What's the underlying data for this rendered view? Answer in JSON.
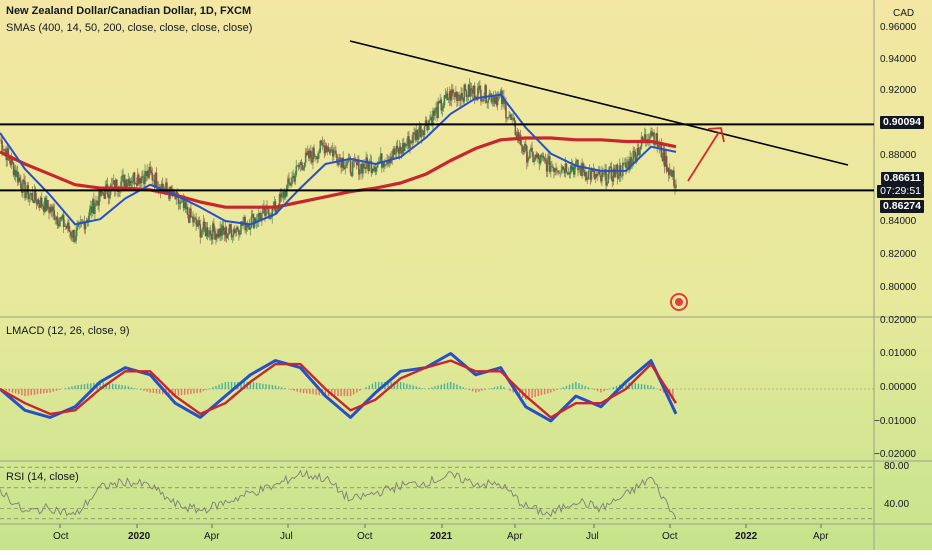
{
  "header": {
    "title": "New Zealand Dollar/Canadian Dollar, 1D, FXCM",
    "sma_legend": "SMAs (400, 14, 50, 200, close, close, close, close)"
  },
  "lmacd": {
    "legend": "LMACD (12, 26, close, 9)"
  },
  "rsi": {
    "legend": "RSI (14, close)"
  },
  "price_axis": {
    "currency": "CAD",
    "ticks": [
      "0.96000",
      "0.94000",
      "0.92000",
      "0.88000",
      "0.84000",
      "0.82000",
      "0.80000"
    ]
  },
  "lmacd_axis": {
    "ticks": [
      "0.02000",
      "0.01000",
      "0.00000",
      "−0.01000",
      "−0.02000"
    ]
  },
  "rsi_axis": {
    "ticks": [
      "80.00",
      "40.00"
    ]
  },
  "price_tags": {
    "upper_line": "0.90094",
    "last_price": "0.86611",
    "countdown": "07:29:51",
    "lower_line": "0.86274"
  },
  "time_axis": {
    "labels": [
      "Oct",
      "2020",
      "Apr",
      "Jul",
      "Oct",
      "2021",
      "Apr",
      "Jul",
      "Oct",
      "2022",
      "Apr"
    ]
  },
  "colors": {
    "bg_top": "#f2e9a6",
    "bg_bottom": "#c9e58f",
    "sma_fast": "#2550c8",
    "sma_slow": "#c8262e",
    "trendline": "#000000",
    "forecast_arrow": "#d62a2a"
  },
  "chart_data": [
    {
      "type": "line",
      "title": "New Zealand Dollar/Canadian Dollar, 1D, FXCM",
      "x": [
        "2019-07",
        "2019-08",
        "2019-09",
        "2019-10",
        "2019-11",
        "2019-12",
        "2020-01",
        "2020-02",
        "2020-03",
        "2020-04",
        "2020-05",
        "2020-06",
        "2020-07",
        "2020-08",
        "2020-09",
        "2020-10",
        "2020-11",
        "2020-12",
        "2021-01",
        "2021-02",
        "2021-03",
        "2021-04",
        "2021-05",
        "2021-06",
        "2021-07",
        "2021-08",
        "2021-09",
        "2021-10"
      ],
      "series": [
        {
          "name": "close",
          "values": [
            0.892,
            0.862,
            0.852,
            0.836,
            0.86,
            0.869,
            0.872,
            0.858,
            0.84,
            0.838,
            0.845,
            0.852,
            0.878,
            0.889,
            0.876,
            0.878,
            0.886,
            0.901,
            0.918,
            0.92,
            0.916,
            0.884,
            0.877,
            0.876,
            0.869,
            0.876,
            0.898,
            0.866
          ]
        },
        {
          "values": [
            0.896,
            0.875,
            0.86,
            0.843,
            0.846,
            0.858,
            0.866,
            0.86,
            0.853,
            0.845,
            0.843,
            0.849,
            0.864,
            0.878,
            0.881,
            0.878,
            0.882,
            0.893,
            0.907,
            0.916,
            0.918,
            0.899,
            0.884,
            0.877,
            0.874,
            0.874,
            0.888,
            0.885
          ]
        },
        {
          "values": [
            0.885,
            0.878,
            0.872,
            0.866,
            0.864,
            0.864,
            0.863,
            0.86,
            0.856,
            0.853,
            0.853,
            0.853,
            0.856,
            0.859,
            0.862,
            0.864,
            0.867,
            0.872,
            0.88,
            0.887,
            0.892,
            0.893,
            0.893,
            0.892,
            0.892,
            0.891,
            0.891,
            0.888
          ]
        }
      ],
      "ylim": [
        0.79,
        0.97
      ],
      "ylabel": "CAD",
      "horizontal_lines": [
        0.90094,
        0.86274
      ],
      "last_price": 0.86611
    },
    {
      "type": "bar",
      "title": "LMACD (12, 26, close, 9)",
      "x": [
        "2019-07",
        "2019-08",
        "2019-09",
        "2019-10",
        "2019-11",
        "2019-12",
        "2020-01",
        "2020-02",
        "2020-03",
        "2020-04",
        "2020-05",
        "2020-06",
        "2020-07",
        "2020-08",
        "2020-09",
        "2020-10",
        "2020-11",
        "2020-12",
        "2021-01",
        "2021-02",
        "2021-03",
        "2021-04",
        "2021-05",
        "2021-06",
        "2021-07",
        "2021-08",
        "2021-09",
        "2021-10"
      ],
      "series": [
        {
          "values": [
            0.0,
            -0.006,
            -0.008,
            -0.005,
            0.002,
            0.006,
            0.004,
            -0.004,
            -0.008,
            -0.002,
            0.004,
            0.008,
            0.006,
            -0.002,
            -0.008,
            -0.001,
            0.005,
            0.006,
            0.01,
            0.004,
            0.006,
            -0.005,
            -0.009,
            -0.002,
            -0.005,
            0.002,
            0.008,
            -0.007
          ]
        },
        {
          "values": [
            0.0,
            -0.004,
            -0.007,
            -0.006,
            0.0,
            0.005,
            0.005,
            -0.002,
            -0.007,
            -0.004,
            0.002,
            0.007,
            0.007,
            0.0,
            -0.006,
            -0.003,
            0.003,
            0.006,
            0.008,
            0.005,
            0.005,
            -0.002,
            -0.008,
            -0.004,
            -0.004,
            0.0,
            0.007,
            -0.004
          ]
        }
      ],
      "ylim": [
        -0.02,
        0.02
      ]
    },
    {
      "type": "line",
      "title": "RSI (14, close)",
      "x": [
        "2019-07",
        "2019-08",
        "2019-09",
        "2019-10",
        "2019-11",
        "2019-12",
        "2020-01",
        "2020-02",
        "2020-03",
        "2020-04",
        "2020-05",
        "2020-06",
        "2020-07",
        "2020-08",
        "2020-09",
        "2020-10",
        "2020-11",
        "2020-12",
        "2021-01",
        "2021-02",
        "2021-03",
        "2021-04",
        "2021-05",
        "2021-06",
        "2021-07",
        "2021-08",
        "2021-09",
        "2021-10"
      ],
      "series": [
        {
          "values": [
            58,
            36,
            41,
            33,
            60,
            66,
            62,
            44,
            38,
            46,
            55,
            62,
            74,
            69,
            48,
            55,
            62,
            65,
            72,
            64,
            63,
            42,
            34,
            48,
            40,
            53,
            70,
            30
          ]
        }
      ],
      "ylim": [
        25,
        85
      ]
    }
  ]
}
